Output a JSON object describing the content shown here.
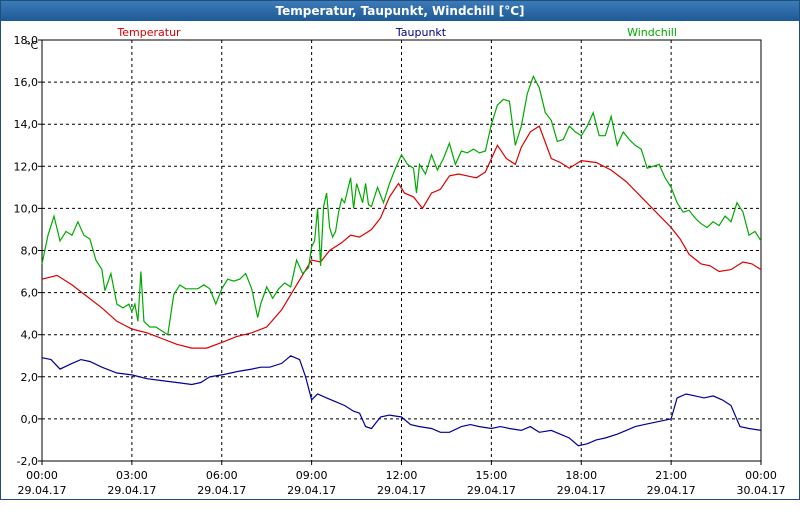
{
  "window": {
    "title": "Temperatur, Taupunkt, Windchill [°C]"
  },
  "chart_data": {
    "type": "line",
    "title": "Temperatur, Taupunkt, Windchill [°C]",
    "ylabel": "°C",
    "ylim": [
      -2,
      20
    ],
    "xlim": [
      0,
      24
    ],
    "grid": true,
    "legend": "top",
    "y_ticks": [
      "-2,0",
      "0,0",
      "2,0",
      "4,0",
      "6,0",
      "8,0",
      "10,0",
      "12,0",
      "14,0",
      "16,0",
      "18,0"
    ],
    "x_ticks": [
      {
        "time": "00:00",
        "date": "29.04.17"
      },
      {
        "time": "03:00",
        "date": "29.04.17"
      },
      {
        "time": "06:00",
        "date": "29.04.17"
      },
      {
        "time": "09:00",
        "date": "29.04.17"
      },
      {
        "time": "12:00",
        "date": "29.04.17"
      },
      {
        "time": "15:00",
        "date": "29.04.17"
      },
      {
        "time": "18:00",
        "date": "29.04.17"
      },
      {
        "time": "21:00",
        "date": "29.04.17"
      },
      {
        "time": "00:00",
        "date": "30.04.17"
      }
    ],
    "series": [
      {
        "name": "Temperatur",
        "color": "#dd0000",
        "points": [
          [
            0,
            7.5
          ],
          [
            0.5,
            7.7
          ],
          [
            1,
            7.2
          ],
          [
            1.5,
            6.6
          ],
          [
            2,
            6.0
          ],
          [
            2.5,
            5.3
          ],
          [
            3,
            4.9
          ],
          [
            3.5,
            4.7
          ],
          [
            4,
            4.4
          ],
          [
            4.5,
            4.1
          ],
          [
            5,
            3.9
          ],
          [
            5.5,
            3.9
          ],
          [
            6,
            4.2
          ],
          [
            6.5,
            4.5
          ],
          [
            7,
            4.7
          ],
          [
            7.5,
            5.0
          ],
          [
            8,
            5.9
          ],
          [
            8.5,
            7.2
          ],
          [
            9,
            8.5
          ],
          [
            9.3,
            8.4
          ],
          [
            9.6,
            9.0
          ],
          [
            10,
            9.4
          ],
          [
            10.3,
            9.8
          ],
          [
            10.6,
            9.7
          ],
          [
            11,
            10.1
          ],
          [
            11.3,
            10.7
          ],
          [
            11.6,
            11.8
          ],
          [
            11.9,
            12.5
          ],
          [
            12.1,
            12.0
          ],
          [
            12.4,
            11.8
          ],
          [
            12.7,
            11.2
          ],
          [
            13,
            12.0
          ],
          [
            13.3,
            12.2
          ],
          [
            13.6,
            12.9
          ],
          [
            13.9,
            13.0
          ],
          [
            14.2,
            12.9
          ],
          [
            14.5,
            12.8
          ],
          [
            14.8,
            13.1
          ],
          [
            15.2,
            14.5
          ],
          [
            15.5,
            13.8
          ],
          [
            15.8,
            13.5
          ],
          [
            16,
            14.4
          ],
          [
            16.3,
            15.2
          ],
          [
            16.6,
            15.5
          ],
          [
            17,
            13.8
          ],
          [
            17.3,
            13.6
          ],
          [
            17.6,
            13.3
          ],
          [
            18,
            13.7
          ],
          [
            18.5,
            13.6
          ],
          [
            19,
            13.2
          ],
          [
            19.5,
            12.6
          ],
          [
            20,
            11.8
          ],
          [
            20.5,
            11.0
          ],
          [
            21,
            10.2
          ],
          [
            21.3,
            9.6
          ],
          [
            21.6,
            8.8
          ],
          [
            22,
            8.3
          ],
          [
            22.3,
            8.2
          ],
          [
            22.6,
            7.9
          ],
          [
            23,
            8.0
          ],
          [
            23.4,
            8.4
          ],
          [
            23.7,
            8.3
          ],
          [
            24,
            8.0
          ]
        ]
      },
      {
        "name": "Taupunkt",
        "color": "#000099",
        "points": [
          [
            0,
            3.4
          ],
          [
            0.3,
            3.3
          ],
          [
            0.6,
            2.8
          ],
          [
            1,
            3.1
          ],
          [
            1.3,
            3.3
          ],
          [
            1.6,
            3.2
          ],
          [
            2,
            2.9
          ],
          [
            2.5,
            2.6
          ],
          [
            3,
            2.5
          ],
          [
            3.5,
            2.3
          ],
          [
            4,
            2.2
          ],
          [
            4.5,
            2.1
          ],
          [
            5,
            2.0
          ],
          [
            5.3,
            2.1
          ],
          [
            5.6,
            2.4
          ],
          [
            6,
            2.5
          ],
          [
            6.3,
            2.6
          ],
          [
            6.6,
            2.7
          ],
          [
            7,
            2.8
          ],
          [
            7.3,
            2.9
          ],
          [
            7.6,
            2.9
          ],
          [
            8,
            3.1
          ],
          [
            8.3,
            3.5
          ],
          [
            8.6,
            3.3
          ],
          [
            8.8,
            2.4
          ],
          [
            9,
            1.2
          ],
          [
            9.2,
            1.5
          ],
          [
            9.5,
            1.3
          ],
          [
            9.8,
            1.1
          ],
          [
            10.1,
            0.9
          ],
          [
            10.4,
            0.6
          ],
          [
            10.6,
            0.5
          ],
          [
            10.8,
            -0.2
          ],
          [
            11,
            -0.3
          ],
          [
            11.3,
            0.3
          ],
          [
            11.6,
            0.4
          ],
          [
            12,
            0.3
          ],
          [
            12.3,
            -0.1
          ],
          [
            12.6,
            -0.2
          ],
          [
            13,
            -0.3
          ],
          [
            13.3,
            -0.5
          ],
          [
            13.6,
            -0.5
          ],
          [
            14,
            -0.2
          ],
          [
            14.3,
            -0.1
          ],
          [
            14.6,
            -0.2
          ],
          [
            15,
            -0.3
          ],
          [
            15.3,
            -0.2
          ],
          [
            15.6,
            -0.3
          ],
          [
            16,
            -0.4
          ],
          [
            16.3,
            -0.2
          ],
          [
            16.6,
            -0.5
          ],
          [
            17,
            -0.4
          ],
          [
            17.3,
            -0.6
          ],
          [
            17.6,
            -0.8
          ],
          [
            17.9,
            -1.2
          ],
          [
            18.2,
            -1.1
          ],
          [
            18.5,
            -0.9
          ],
          [
            18.8,
            -0.8
          ],
          [
            19.2,
            -0.6
          ],
          [
            19.5,
            -0.4
          ],
          [
            19.8,
            -0.2
          ],
          [
            20.1,
            -0.1
          ],
          [
            20.4,
            0.0
          ],
          [
            20.7,
            0.1
          ],
          [
            21,
            0.2
          ],
          [
            21.2,
            1.3
          ],
          [
            21.5,
            1.5
          ],
          [
            21.8,
            1.4
          ],
          [
            22.1,
            1.3
          ],
          [
            22.4,
            1.4
          ],
          [
            22.7,
            1.2
          ],
          [
            23,
            0.9
          ],
          [
            23.3,
            -0.2
          ],
          [
            23.6,
            -0.3
          ],
          [
            24,
            -0.4
          ]
        ]
      },
      {
        "name": "Windchill",
        "color": "#00aa00",
        "points": [
          [
            0,
            8.3
          ],
          [
            0.2,
            9.8
          ],
          [
            0.4,
            10.8
          ],
          [
            0.6,
            9.5
          ],
          [
            0.8,
            10.0
          ],
          [
            1,
            9.8
          ],
          [
            1.2,
            10.5
          ],
          [
            1.4,
            9.8
          ],
          [
            1.6,
            9.6
          ],
          [
            1.8,
            8.5
          ],
          [
            2,
            8.0
          ],
          [
            2.1,
            6.9
          ],
          [
            2.3,
            7.8
          ],
          [
            2.5,
            6.2
          ],
          [
            2.7,
            6.0
          ],
          [
            2.9,
            6.2
          ],
          [
            3,
            5.8
          ],
          [
            3.1,
            6.2
          ],
          [
            3.2,
            5.3
          ],
          [
            3.3,
            7.9
          ],
          [
            3.4,
            5.3
          ],
          [
            3.6,
            5.0
          ],
          [
            3.8,
            5.0
          ],
          [
            4,
            4.8
          ],
          [
            4.2,
            4.6
          ],
          [
            4.4,
            6.7
          ],
          [
            4.6,
            7.2
          ],
          [
            4.8,
            7.0
          ],
          [
            5,
            7.0
          ],
          [
            5.2,
            7.0
          ],
          [
            5.4,
            7.2
          ],
          [
            5.6,
            7.0
          ],
          [
            5.8,
            6.2
          ],
          [
            6,
            7.0
          ],
          [
            6.2,
            7.5
          ],
          [
            6.4,
            7.4
          ],
          [
            6.6,
            7.5
          ],
          [
            6.8,
            7.8
          ],
          [
            7,
            7.0
          ],
          [
            7.2,
            5.5
          ],
          [
            7.3,
            6.2
          ],
          [
            7.5,
            7.1
          ],
          [
            7.7,
            6.5
          ],
          [
            7.9,
            7.0
          ],
          [
            8.1,
            7.3
          ],
          [
            8.3,
            7.1
          ],
          [
            8.5,
            8.5
          ],
          [
            8.7,
            7.8
          ],
          [
            8.9,
            8.1
          ],
          [
            9,
            9.2
          ],
          [
            9.1,
            9.5
          ],
          [
            9.2,
            11.2
          ],
          [
            9.3,
            8.2
          ],
          [
            9.4,
            11.3
          ],
          [
            9.5,
            12.0
          ],
          [
            9.6,
            10.2
          ],
          [
            9.7,
            9.7
          ],
          [
            9.8,
            10.0
          ],
          [
            9.9,
            11.0
          ],
          [
            10,
            11.7
          ],
          [
            10.1,
            11.5
          ],
          [
            10.3,
            12.8
          ],
          [
            10.4,
            11.2
          ],
          [
            10.5,
            12.5
          ],
          [
            10.6,
            12.0
          ],
          [
            10.7,
            11.5
          ],
          [
            10.8,
            12.5
          ],
          [
            10.9,
            11.4
          ],
          [
            11,
            11.3
          ],
          [
            11.2,
            12.3
          ],
          [
            11.4,
            11.5
          ],
          [
            11.6,
            12.5
          ],
          [
            11.8,
            13.3
          ],
          [
            12,
            14.0
          ],
          [
            12.2,
            13.5
          ],
          [
            12.4,
            13.3
          ],
          [
            12.5,
            12.0
          ],
          [
            12.6,
            13.5
          ],
          [
            12.8,
            13.0
          ],
          [
            13,
            14.0
          ],
          [
            13.2,
            13.2
          ],
          [
            13.4,
            13.8
          ],
          [
            13.6,
            14.6
          ],
          [
            13.8,
            13.5
          ],
          [
            14,
            14.2
          ],
          [
            14.2,
            14.1
          ],
          [
            14.4,
            14.3
          ],
          [
            14.6,
            14.1
          ],
          [
            14.8,
            14.2
          ],
          [
            15,
            15.6
          ],
          [
            15.2,
            16.6
          ],
          [
            15.4,
            16.9
          ],
          [
            15.6,
            16.8
          ],
          [
            15.8,
            14.5
          ],
          [
            16,
            15.5
          ],
          [
            16.2,
            17.2
          ],
          [
            16.4,
            18.1
          ],
          [
            16.6,
            17.5
          ],
          [
            16.8,
            16.2
          ],
          [
            17,
            15.8
          ],
          [
            17.2,
            14.7
          ],
          [
            17.4,
            14.8
          ],
          [
            17.6,
            15.5
          ],
          [
            17.8,
            15.2
          ],
          [
            18,
            15.0
          ],
          [
            18.2,
            15.5
          ],
          [
            18.4,
            16.2
          ],
          [
            18.6,
            15.0
          ],
          [
            18.8,
            15.0
          ],
          [
            19,
            16.0
          ],
          [
            19.2,
            14.5
          ],
          [
            19.4,
            15.2
          ],
          [
            19.6,
            14.8
          ],
          [
            19.8,
            14.5
          ],
          [
            20,
            14.3
          ],
          [
            20.2,
            13.3
          ],
          [
            20.4,
            13.4
          ],
          [
            20.6,
            13.5
          ],
          [
            20.8,
            12.8
          ],
          [
            21,
            12.3
          ],
          [
            21.2,
            11.5
          ],
          [
            21.4,
            11.0
          ],
          [
            21.6,
            11.1
          ],
          [
            21.8,
            10.7
          ],
          [
            22,
            10.4
          ],
          [
            22.2,
            10.2
          ],
          [
            22.4,
            10.5
          ],
          [
            22.6,
            10.3
          ],
          [
            22.8,
            10.8
          ],
          [
            23,
            10.5
          ],
          [
            23.2,
            11.5
          ],
          [
            23.4,
            11.0
          ],
          [
            23.6,
            9.8
          ],
          [
            23.8,
            10.0
          ],
          [
            24,
            9.5
          ]
        ]
      }
    ]
  }
}
